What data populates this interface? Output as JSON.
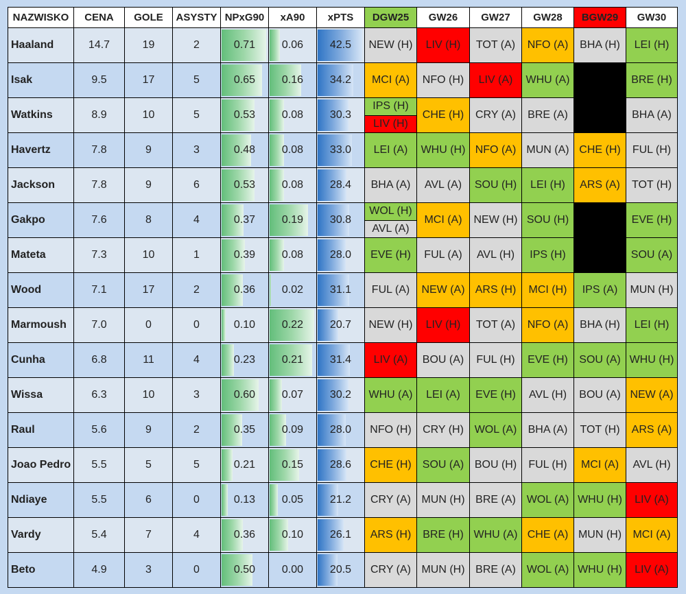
{
  "chart_data": {
    "type": "table",
    "columns": [
      "NAZWISKO",
      "CENA",
      "GOLE",
      "ASYSTY",
      "NPxG90",
      "xA90",
      "xPTS",
      "DGW25",
      "GW26",
      "GW27",
      "GW28",
      "BGW29",
      "GW30"
    ],
    "colors": {
      "green": "#92d050",
      "orange": "#ffc000",
      "red": "#ff0000",
      "grey": "#d9d9d9",
      "blank": "#000000"
    },
    "scales": {
      "NPxG90_max": 0.71,
      "xA90_max": 0.22,
      "xPTS_max": 42.5
    },
    "rows": [
      {
        "name": "Haaland",
        "price": "14.7",
        "goals": "19",
        "assists": "2",
        "npxg90": "0.71",
        "xa90": "0.06",
        "xpts": "42.5",
        "fixtures": [
          [
            {
              "t": "NEW (H)",
              "c": "grey"
            }
          ],
          [
            {
              "t": "LIV (H)",
              "c": "red"
            }
          ],
          [
            {
              "t": "TOT (A)",
              "c": "grey"
            }
          ],
          [
            {
              "t": "NFO (A)",
              "c": "orange"
            }
          ],
          [
            {
              "t": "BHA (H)",
              "c": "grey"
            }
          ],
          [
            {
              "t": "LEI (H)",
              "c": "green"
            }
          ]
        ]
      },
      {
        "name": "Isak",
        "price": "9.5",
        "goals": "17",
        "assists": "5",
        "npxg90": "0.65",
        "xa90": "0.16",
        "xpts": "34.2",
        "fixtures": [
          [
            {
              "t": "MCI (A)",
              "c": "orange"
            }
          ],
          [
            {
              "t": "NFO (H)",
              "c": "grey"
            }
          ],
          [
            {
              "t": "LIV (A)",
              "c": "red"
            }
          ],
          [
            {
              "t": "WHU (A)",
              "c": "green"
            }
          ],
          [
            {
              "t": "",
              "c": "blank"
            }
          ],
          [
            {
              "t": "BRE (H)",
              "c": "green"
            }
          ]
        ]
      },
      {
        "name": "Watkins",
        "price": "8.9",
        "goals": "10",
        "assists": "5",
        "npxg90": "0.53",
        "xa90": "0.08",
        "xpts": "30.3",
        "fixtures": [
          [
            {
              "t": "IPS (H)",
              "c": "green"
            },
            {
              "t": "LIV (H)",
              "c": "red"
            }
          ],
          [
            {
              "t": "CHE (H)",
              "c": "orange"
            }
          ],
          [
            {
              "t": "CRY (A)",
              "c": "grey"
            }
          ],
          [
            {
              "t": "BRE (A)",
              "c": "grey"
            }
          ],
          [
            {
              "t": "",
              "c": "blank"
            }
          ],
          [
            {
              "t": "BHA (A)",
              "c": "grey"
            }
          ]
        ]
      },
      {
        "name": "Havertz",
        "price": "7.8",
        "goals": "9",
        "assists": "3",
        "npxg90": "0.48",
        "xa90": "0.08",
        "xpts": "33.0",
        "fixtures": [
          [
            {
              "t": "LEI (A)",
              "c": "green"
            }
          ],
          [
            {
              "t": "WHU (H)",
              "c": "green"
            }
          ],
          [
            {
              "t": "NFO (A)",
              "c": "orange"
            }
          ],
          [
            {
              "t": "MUN (A)",
              "c": "grey"
            }
          ],
          [
            {
              "t": "CHE (H)",
              "c": "orange"
            }
          ],
          [
            {
              "t": "FUL (H)",
              "c": "grey"
            }
          ]
        ]
      },
      {
        "name": "Jackson",
        "price": "7.8",
        "goals": "9",
        "assists": "6",
        "npxg90": "0.53",
        "xa90": "0.08",
        "xpts": "28.4",
        "fixtures": [
          [
            {
              "t": "BHA (A)",
              "c": "grey"
            }
          ],
          [
            {
              "t": "AVL (A)",
              "c": "grey"
            }
          ],
          [
            {
              "t": "SOU (H)",
              "c": "green"
            }
          ],
          [
            {
              "t": "LEI (H)",
              "c": "green"
            }
          ],
          [
            {
              "t": "ARS (A)",
              "c": "orange"
            }
          ],
          [
            {
              "t": "TOT (H)",
              "c": "grey"
            }
          ]
        ]
      },
      {
        "name": "Gakpo",
        "price": "7.6",
        "goals": "8",
        "assists": "4",
        "npxg90": "0.37",
        "xa90": "0.19",
        "xpts": "30.8",
        "fixtures": [
          [
            {
              "t": "WOL (H)",
              "c": "green"
            },
            {
              "t": "AVL (A)",
              "c": "grey"
            }
          ],
          [
            {
              "t": "MCI (A)",
              "c": "orange"
            }
          ],
          [
            {
              "t": "NEW (H)",
              "c": "grey"
            }
          ],
          [
            {
              "t": "SOU (H)",
              "c": "green"
            }
          ],
          [
            {
              "t": "",
              "c": "blank"
            }
          ],
          [
            {
              "t": "EVE (H)",
              "c": "green"
            }
          ]
        ]
      },
      {
        "name": "Mateta",
        "price": "7.3",
        "goals": "10",
        "assists": "1",
        "npxg90": "0.39",
        "xa90": "0.08",
        "xpts": "28.0",
        "fixtures": [
          [
            {
              "t": "EVE (H)",
              "c": "green"
            }
          ],
          [
            {
              "t": "FUL (A)",
              "c": "grey"
            }
          ],
          [
            {
              "t": "AVL (H)",
              "c": "grey"
            }
          ],
          [
            {
              "t": "IPS (H)",
              "c": "green"
            }
          ],
          [
            {
              "t": "",
              "c": "blank"
            }
          ],
          [
            {
              "t": "SOU (A)",
              "c": "green"
            }
          ]
        ]
      },
      {
        "name": "Wood",
        "price": "7.1",
        "goals": "17",
        "assists": "2",
        "npxg90": "0.36",
        "xa90": "0.02",
        "xpts": "31.1",
        "fixtures": [
          [
            {
              "t": "FUL (A)",
              "c": "grey"
            }
          ],
          [
            {
              "t": "NEW (A)",
              "c": "orange"
            }
          ],
          [
            {
              "t": "ARS (H)",
              "c": "orange"
            }
          ],
          [
            {
              "t": "MCI (H)",
              "c": "orange"
            }
          ],
          [
            {
              "t": "IPS (A)",
              "c": "green"
            }
          ],
          [
            {
              "t": "MUN (H)",
              "c": "grey"
            }
          ]
        ]
      },
      {
        "name": "Marmoush",
        "price": "7.0",
        "goals": "0",
        "assists": "0",
        "npxg90": "0.10",
        "xa90": "0.22",
        "xpts": "20.7",
        "fixtures": [
          [
            {
              "t": "NEW (H)",
              "c": "grey"
            }
          ],
          [
            {
              "t": "LIV (H)",
              "c": "red"
            }
          ],
          [
            {
              "t": "TOT (A)",
              "c": "grey"
            }
          ],
          [
            {
              "t": "NFO (A)",
              "c": "orange"
            }
          ],
          [
            {
              "t": "BHA (H)",
              "c": "grey"
            }
          ],
          [
            {
              "t": "LEI (H)",
              "c": "green"
            }
          ]
        ]
      },
      {
        "name": "Cunha",
        "price": "6.8",
        "goals": "11",
        "assists": "4",
        "npxg90": "0.23",
        "xa90": "0.21",
        "xpts": "31.4",
        "fixtures": [
          [
            {
              "t": "LIV (A)",
              "c": "red"
            }
          ],
          [
            {
              "t": "BOU (A)",
              "c": "grey"
            }
          ],
          [
            {
              "t": "FUL (H)",
              "c": "grey"
            }
          ],
          [
            {
              "t": "EVE (H)",
              "c": "green"
            }
          ],
          [
            {
              "t": "SOU (A)",
              "c": "green"
            }
          ],
          [
            {
              "t": "WHU (H)",
              "c": "green"
            }
          ]
        ]
      },
      {
        "name": "Wissa",
        "price": "6.3",
        "goals": "10",
        "assists": "3",
        "npxg90": "0.60",
        "xa90": "0.07",
        "xpts": "30.2",
        "fixtures": [
          [
            {
              "t": "WHU (A)",
              "c": "green"
            }
          ],
          [
            {
              "t": "LEI (A)",
              "c": "green"
            }
          ],
          [
            {
              "t": "EVE (H)",
              "c": "green"
            }
          ],
          [
            {
              "t": "AVL (H)",
              "c": "grey"
            }
          ],
          [
            {
              "t": "BOU (A)",
              "c": "grey"
            }
          ],
          [
            {
              "t": "NEW (A)",
              "c": "orange"
            }
          ]
        ]
      },
      {
        "name": "Raul",
        "price": "5.6",
        "goals": "9",
        "assists": "2",
        "npxg90": "0.35",
        "xa90": "0.09",
        "xpts": "28.0",
        "fixtures": [
          [
            {
              "t": "NFO (H)",
              "c": "grey"
            }
          ],
          [
            {
              "t": "CRY (H)",
              "c": "grey"
            }
          ],
          [
            {
              "t": "WOL (A)",
              "c": "green"
            }
          ],
          [
            {
              "t": "BHA (A)",
              "c": "grey"
            }
          ],
          [
            {
              "t": "TOT (H)",
              "c": "grey"
            }
          ],
          [
            {
              "t": "ARS (A)",
              "c": "orange"
            }
          ]
        ]
      },
      {
        "name": "Joao Pedro",
        "price": "5.5",
        "goals": "5",
        "assists": "5",
        "npxg90": "0.21",
        "xa90": "0.15",
        "xpts": "28.6",
        "fixtures": [
          [
            {
              "t": "CHE (H)",
              "c": "orange"
            }
          ],
          [
            {
              "t": "SOU (A)",
              "c": "green"
            }
          ],
          [
            {
              "t": "BOU (H)",
              "c": "grey"
            }
          ],
          [
            {
              "t": "FUL (H)",
              "c": "grey"
            }
          ],
          [
            {
              "t": "MCI (A)",
              "c": "orange"
            }
          ],
          [
            {
              "t": "AVL (H)",
              "c": "grey"
            }
          ]
        ]
      },
      {
        "name": "Ndiaye",
        "price": "5.5",
        "goals": "6",
        "assists": "0",
        "npxg90": "0.13",
        "xa90": "0.05",
        "xpts": "21.2",
        "fixtures": [
          [
            {
              "t": "CRY (A)",
              "c": "grey"
            }
          ],
          [
            {
              "t": "MUN (H)",
              "c": "grey"
            }
          ],
          [
            {
              "t": "BRE (A)",
              "c": "grey"
            }
          ],
          [
            {
              "t": "WOL (A)",
              "c": "green"
            }
          ],
          [
            {
              "t": "WHU (H)",
              "c": "green"
            }
          ],
          [
            {
              "t": "LIV (A)",
              "c": "red"
            }
          ]
        ]
      },
      {
        "name": "Vardy",
        "price": "5.4",
        "goals": "7",
        "assists": "4",
        "npxg90": "0.36",
        "xa90": "0.10",
        "xpts": "26.1",
        "fixtures": [
          [
            {
              "t": "ARS (H)",
              "c": "orange"
            }
          ],
          [
            {
              "t": "BRE (H)",
              "c": "green"
            }
          ],
          [
            {
              "t": "WHU (A)",
              "c": "green"
            }
          ],
          [
            {
              "t": "CHE (A)",
              "c": "orange"
            }
          ],
          [
            {
              "t": "MUN (H)",
              "c": "grey"
            }
          ],
          [
            {
              "t": "MCI (A)",
              "c": "orange"
            }
          ]
        ]
      },
      {
        "name": "Beto",
        "price": "4.9",
        "goals": "3",
        "assists": "0",
        "npxg90": "0.50",
        "xa90": "0.00",
        "xpts": "20.5",
        "fixtures": [
          [
            {
              "t": "CRY (A)",
              "c": "grey"
            }
          ],
          [
            {
              "t": "MUN (H)",
              "c": "grey"
            }
          ],
          [
            {
              "t": "BRE (A)",
              "c": "grey"
            }
          ],
          [
            {
              "t": "WOL (A)",
              "c": "green"
            }
          ],
          [
            {
              "t": "WHU (H)",
              "c": "green"
            }
          ],
          [
            {
              "t": "LIV (A)",
              "c": "red"
            }
          ]
        ]
      }
    ]
  }
}
